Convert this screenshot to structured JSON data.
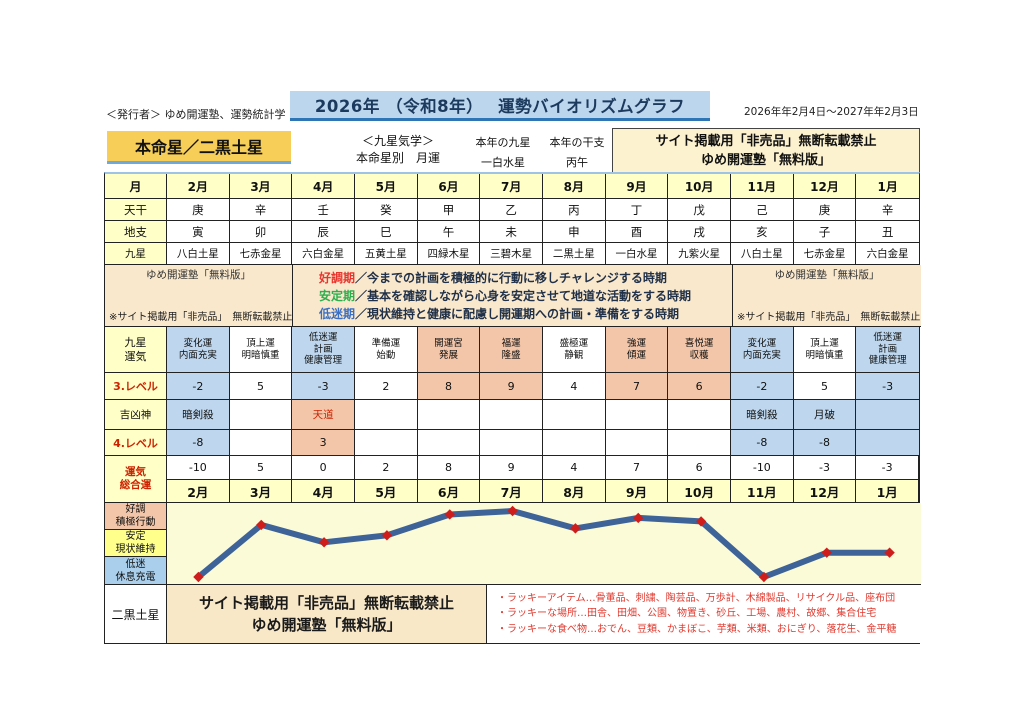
{
  "header": {
    "publisher": "＜発行者＞ ゆめ開運塾、運勢統計学",
    "title": "2026年 （令和8年）　 運勢バイオリズムグラフ",
    "date_range": "2026年年2月4日～2027年年2月3日",
    "honmeisei": "本命星／二黒土星",
    "kigaku_line1": "＜九星気学＞",
    "kigaku_line2": "本命星別　月運",
    "year_star_label": "本年の九星",
    "year_star_value": "一白水星",
    "year_eto_label": "本年の干支",
    "year_eto_value": "丙午",
    "notice_line1": "サイト掲載用「非売品」無断転載禁止",
    "notice_line2": "ゆめ開運塾「無料版」"
  },
  "table": {
    "row_labels": {
      "month": "月",
      "tenkan": "天干",
      "chishi": "地支",
      "kyusei": "九星",
      "unki": [
        "九星",
        "運気"
      ],
      "level3": "3.レベル",
      "kichikyojin": "吉凶神",
      "level4": "4.レベル",
      "sogo": [
        "運気",
        "総合運"
      ]
    },
    "watermark_top": "ゆめ開運塾「無料版」",
    "watermark_bottom": "※サイト掲載用「非売品」　無断転載禁止",
    "legend": [
      {
        "term": "好調期",
        "color": "#e8352e",
        "desc": "／今までの計画を積極的に行動に移しチャレンジする時期"
      },
      {
        "term": "安定期",
        "color": "#2eaf4e",
        "desc": "／基本を確認しながら心身を安定させて地道な活動をする時期"
      },
      {
        "term": "低迷期",
        "color": "#3a6fc4",
        "desc": "／現状維持と健康に配慮し開運期への計画・準備をする時期"
      }
    ],
    "months": [
      {
        "month": "2月",
        "tenkan": "庚",
        "chishi": "寅",
        "kyusei": "八白土星",
        "unki": [
          "変化運",
          "内面充実"
        ],
        "tone": "blue",
        "level3": "-2",
        "kichikyo": "暗剣殺",
        "kichikyo_tone": "blue",
        "kichikyo_red": false,
        "level4": "-8",
        "level4_tone": "blue",
        "sogo": "-10"
      },
      {
        "month": "3月",
        "tenkan": "辛",
        "chishi": "卯",
        "kyusei": "七赤金星",
        "unki": [
          "頂上運",
          "明暗慎重"
        ],
        "tone": "white",
        "level3": "5",
        "kichikyo": "",
        "kichikyo_tone": "white",
        "kichikyo_red": false,
        "level4": "",
        "level4_tone": "white",
        "sogo": "5"
      },
      {
        "month": "4月",
        "tenkan": "壬",
        "chishi": "辰",
        "kyusei": "六白金星",
        "unki": [
          "低迷運",
          "計画",
          "健康管理"
        ],
        "tone": "blue",
        "level3": "-3",
        "kichikyo": "天道",
        "kichikyo_tone": "salmon",
        "kichikyo_red": true,
        "level4": "3",
        "level4_tone": "salmon",
        "sogo": "0"
      },
      {
        "month": "5月",
        "tenkan": "癸",
        "chishi": "巳",
        "kyusei": "五黄土星",
        "unki": [
          "準備運",
          "始動"
        ],
        "tone": "white",
        "level3": "2",
        "kichikyo": "",
        "kichikyo_tone": "white",
        "kichikyo_red": false,
        "level4": "",
        "level4_tone": "white",
        "sogo": "2"
      },
      {
        "month": "6月",
        "tenkan": "甲",
        "chishi": "午",
        "kyusei": "四緑木星",
        "unki": [
          "開運宮",
          "発展"
        ],
        "tone": "salmon",
        "level3": "8",
        "kichikyo": "",
        "kichikyo_tone": "white",
        "kichikyo_red": false,
        "level4": "",
        "level4_tone": "white",
        "sogo": "8"
      },
      {
        "month": "7月",
        "tenkan": "乙",
        "chishi": "未",
        "kyusei": "三碧木星",
        "unki": [
          "福運",
          "隆盛"
        ],
        "tone": "salmon",
        "level3": "9",
        "kichikyo": "",
        "kichikyo_tone": "white",
        "kichikyo_red": false,
        "level4": "",
        "level4_tone": "white",
        "sogo": "9"
      },
      {
        "month": "8月",
        "tenkan": "丙",
        "chishi": "申",
        "kyusei": "二黒土星",
        "unki": [
          "盛極運",
          "静観"
        ],
        "tone": "white",
        "level3": "4",
        "kichikyo": "",
        "kichikyo_tone": "white",
        "kichikyo_red": false,
        "level4": "",
        "level4_tone": "white",
        "sogo": "4"
      },
      {
        "month": "9月",
        "tenkan": "丁",
        "chishi": "酉",
        "kyusei": "一白水星",
        "unki": [
          "強運",
          "傾運"
        ],
        "tone": "salmon",
        "level3": "7",
        "kichikyo": "",
        "kichikyo_tone": "white",
        "kichikyo_red": false,
        "level4": "",
        "level4_tone": "white",
        "sogo": "7"
      },
      {
        "month": "10月",
        "tenkan": "戊",
        "chishi": "戌",
        "kyusei": "九紫火星",
        "unki": [
          "喜悦運",
          "収穫"
        ],
        "tone": "salmon",
        "level3": "6",
        "kichikyo": "",
        "kichikyo_tone": "white",
        "kichikyo_red": false,
        "level4": "",
        "level4_tone": "white",
        "sogo": "6"
      },
      {
        "month": "11月",
        "tenkan": "己",
        "chishi": "亥",
        "kyusei": "八白土星",
        "unki": [
          "変化運",
          "内面充実"
        ],
        "tone": "blue",
        "level3": "-2",
        "kichikyo": "暗剣殺",
        "kichikyo_tone": "blue",
        "kichikyo_red": false,
        "level4": "-8",
        "level4_tone": "blue",
        "sogo": "-10"
      },
      {
        "month": "12月",
        "tenkan": "庚",
        "chishi": "子",
        "kyusei": "七赤金星",
        "unki": [
          "頂上運",
          "明暗慎重"
        ],
        "tone": "white",
        "level3": "5",
        "kichikyo": "月破",
        "kichikyo_tone": "blue",
        "kichikyo_red": false,
        "level4": "-8",
        "level4_tone": "blue",
        "sogo": "-3"
      },
      {
        "month": "1月",
        "tenkan": "辛",
        "chishi": "丑",
        "kyusei": "六白金星",
        "unki": [
          "低迷運",
          "計画",
          "健康管理"
        ],
        "tone": "blue",
        "level3": "-3",
        "kichikyo": "",
        "kichikyo_tone": "blue",
        "kichikyo_red": false,
        "level4": "",
        "level4_tone": "blue",
        "sogo": "-3"
      }
    ]
  },
  "graph": {
    "bands": [
      {
        "lines": [
          "好調",
          "積極行動"
        ],
        "tone": "salmon"
      },
      {
        "lines": [
          "安定",
          "現状維持"
        ],
        "tone": "yellow"
      },
      {
        "lines": [
          "低迷",
          "休息充電"
        ],
        "tone": "blue"
      }
    ],
    "star_label": "二黒土星"
  },
  "footer": {
    "notice_line1": "サイト掲載用「非売品」無断転載禁止",
    "notice_line2": "ゆめ開運塾「無料版」",
    "lucky_lines": [
      "・ラッキーアイテム…骨董品、刺繍、陶芸品、万歩計、木綿製品、リサイクル品、座布団",
      "・ラッキーな場所…田舎、田畑、公園、物置き、砂丘、工場、農村、故郷、集合住宅",
      "・ラッキーな食べ物…おでん、豆類、かまぼこ、芋類、米類、おにぎり、落花生、金平糖"
    ]
  },
  "chart_data": {
    "type": "line",
    "title": "運勢バイオリズムグラフ 2026年（令和8年） 二黒土星 月運",
    "categories": [
      "2月",
      "3月",
      "4月",
      "5月",
      "6月",
      "7月",
      "8月",
      "9月",
      "10月",
      "11月",
      "12月",
      "1月"
    ],
    "values": [
      -10,
      5,
      0,
      2,
      8,
      9,
      4,
      7,
      6,
      -10,
      -3,
      -3
    ],
    "ylim": [
      -10,
      9
    ],
    "xlabel": "月",
    "ylabel": "運気総合運",
    "grid": false,
    "legend_position": "none",
    "line_color": "#3d6399",
    "marker": "diamond",
    "marker_color": "#cf1d1c",
    "plot_bg": "#fbfbd8"
  },
  "colors": {
    "accent_blue": "#bed7ee",
    "accent_salmon": "#f3c6a9",
    "accent_yellow": "#ffffc8",
    "cream": "#f9e8cc",
    "title_bar": "#bcd6ee",
    "honmei_gold": "#f7cf58",
    "red_label": "#cc2200",
    "lucky_red": "#e03a2f"
  }
}
